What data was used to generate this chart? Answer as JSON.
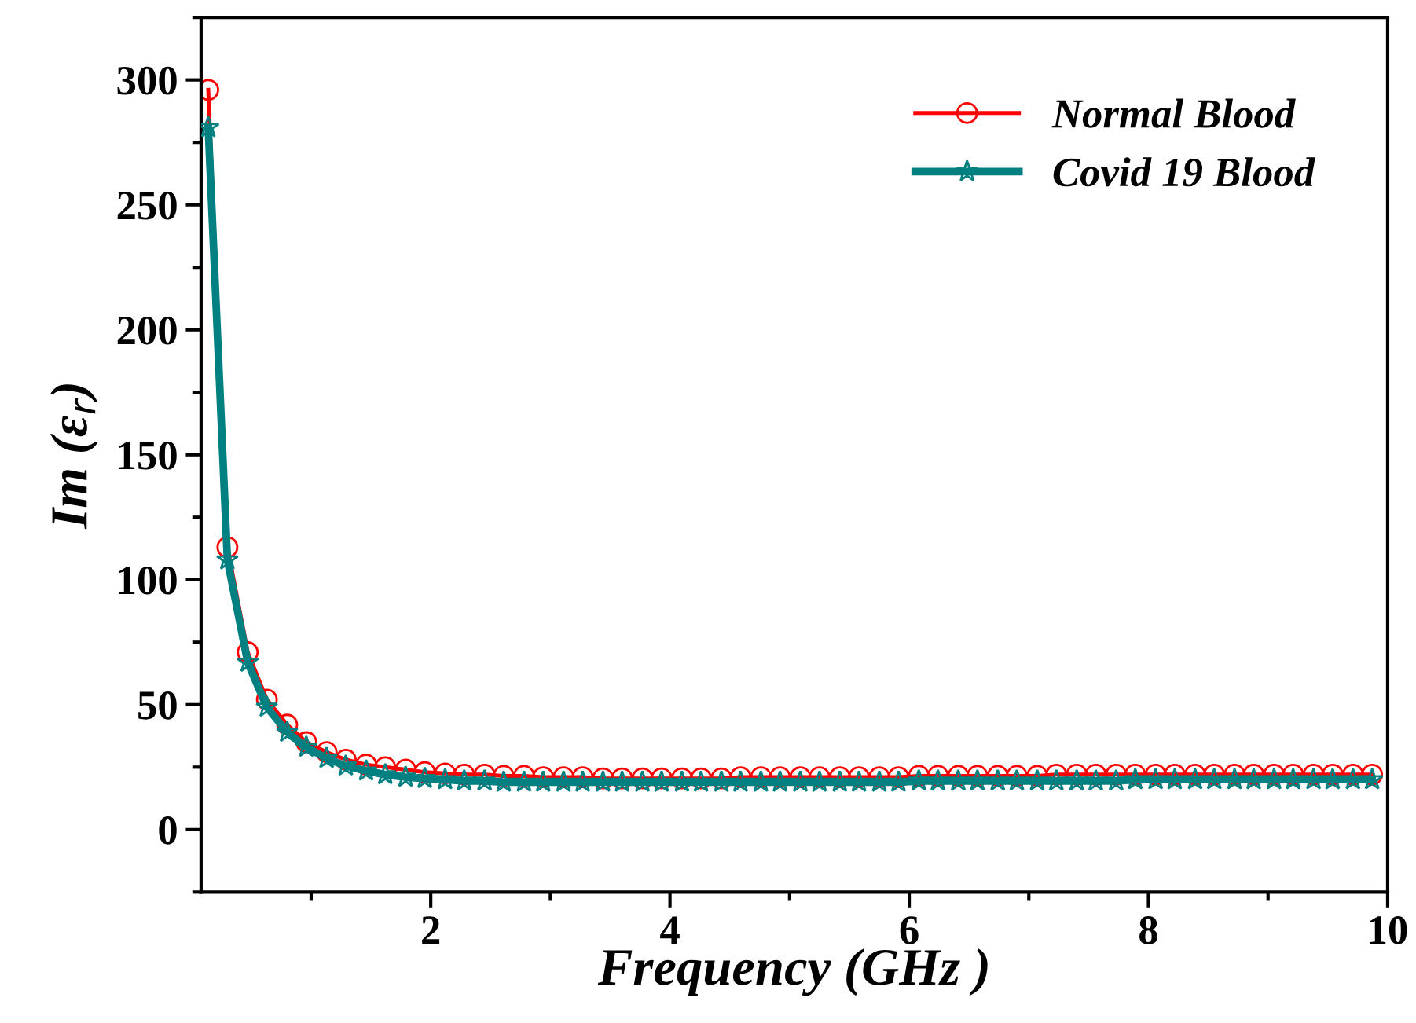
{
  "chart_data": {
    "type": "line",
    "xlabel": "Frequency (GHz )",
    "ylabel": "Im (ε$_{r}$)",
    "x": [
      0.14,
      0.3,
      0.47,
      0.63,
      0.8,
      0.96,
      1.13,
      1.29,
      1.46,
      1.62,
      1.79,
      1.95,
      2.12,
      2.28,
      2.45,
      2.61,
      2.78,
      2.94,
      3.11,
      3.27,
      3.44,
      3.6,
      3.77,
      3.93,
      4.1,
      4.26,
      4.43,
      4.59,
      4.76,
      4.92,
      5.09,
      5.25,
      5.42,
      5.58,
      5.75,
      5.91,
      6.08,
      6.24,
      6.41,
      6.57,
      6.74,
      6.9,
      7.07,
      7.23,
      7.4,
      7.56,
      7.73,
      7.89,
      8.06,
      8.22,
      8.39,
      8.55,
      8.72,
      8.88,
      9.05,
      9.21,
      9.38,
      9.54,
      9.71,
      9.87
    ],
    "series": [
      {
        "name": "Normal Blood",
        "color": "#ff0000",
        "marker": "circle",
        "values": [
          296,
          113,
          71,
          52,
          42,
          35,
          31,
          28,
          26,
          25,
          24,
          23,
          22.5,
          22,
          22,
          21.5,
          21.5,
          21,
          21,
          21,
          20.5,
          20.5,
          20.5,
          20.5,
          20.5,
          20.5,
          20.5,
          21,
          21,
          21,
          21,
          21,
          21,
          21,
          21,
          21,
          21.5,
          21.5,
          21.5,
          21.5,
          21.5,
          21.5,
          21.5,
          22,
          22,
          22,
          22,
          22,
          22,
          22,
          22,
          22,
          22,
          22,
          22,
          22,
          22,
          22,
          22,
          22
        ]
      },
      {
        "name": "Covid 19 Blood",
        "color": "#008080",
        "marker": "star",
        "values": [
          281,
          108,
          67,
          49,
          39,
          33,
          28.5,
          25.5,
          23.5,
          22,
          21,
          20.5,
          20,
          19.5,
          19.5,
          19,
          19,
          19,
          19,
          19,
          19,
          19,
          19,
          19,
          19,
          19,
          19,
          19,
          19,
          19,
          19,
          19,
          19,
          19,
          19,
          19,
          19.5,
          19.5,
          19.5,
          19.5,
          19.5,
          19.5,
          19.5,
          19.5,
          19.5,
          19.5,
          19.5,
          20,
          20,
          20,
          20,
          20,
          20,
          20,
          20,
          20,
          20,
          20,
          20,
          20
        ]
      }
    ],
    "xlim": [
      0.08,
      10
    ],
    "ylim": [
      -25,
      325
    ],
    "xticks": [
      2,
      4,
      6,
      8,
      10
    ],
    "yticks": [
      0,
      50,
      100,
      150,
      200,
      250,
      300
    ],
    "grid": false,
    "legend": "top right",
    "line_style": "solid"
  }
}
